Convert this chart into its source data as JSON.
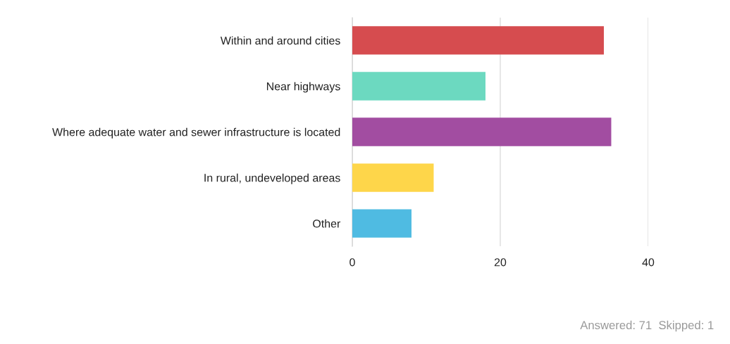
{
  "chart_data": {
    "type": "bar",
    "orientation": "horizontal",
    "categories": [
      "Within and around cities",
      "Near highways",
      "Where adequate water and sewer infrastructure is located",
      "In rural, undeveloped areas",
      "Other"
    ],
    "values": [
      34,
      18,
      35,
      11,
      8
    ],
    "colors": [
      "#d64c4f",
      "#6cd9c0",
      "#a24da1",
      "#fed64a",
      "#4fbbe2"
    ],
    "xlim": [
      0,
      40
    ],
    "xticks": [
      0,
      20,
      40
    ],
    "grid": "x",
    "legend": false,
    "annotations": [
      "Answered: 71  Skipped: 1"
    ]
  }
}
